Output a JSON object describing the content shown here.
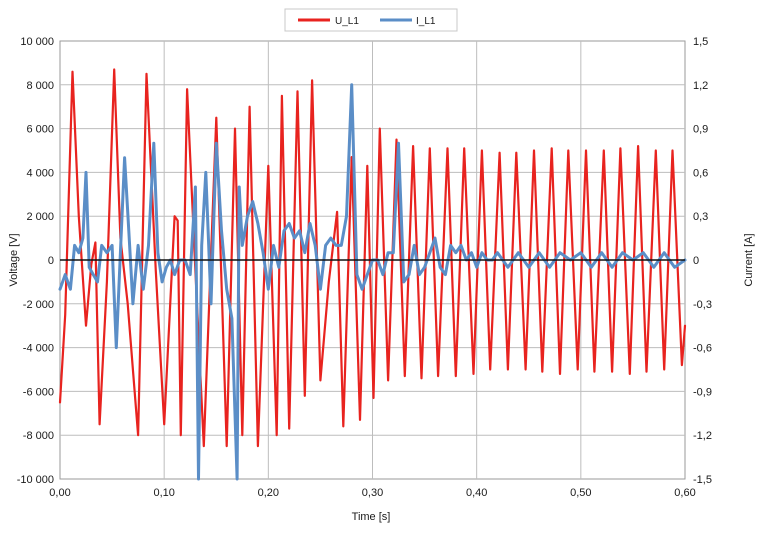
{
  "chart_data": {
    "type": "line",
    "title": "",
    "xlabel": "Time [s]",
    "ylabel": "Voltage [V]",
    "y2label": "Current [A]",
    "xlim": [
      0,
      0.6
    ],
    "ylim": [
      -10000,
      10000
    ],
    "y2lim": [
      -1.5,
      1.5
    ],
    "grid": true,
    "legend_position": "top-center",
    "x_ticks": [
      "0,00",
      "0,10",
      "0,20",
      "0,30",
      "0,40",
      "0,50",
      "0,60"
    ],
    "y_ticks": [
      "10 000",
      "8 000",
      "6 000",
      "4 000",
      "2 000",
      "0",
      "-2 000",
      "-4 000",
      "-6 000",
      "-8 000",
      "-10 000"
    ],
    "y2_ticks": [
      "1,5",
      "1,2",
      "0,9",
      "0,6",
      "0,3",
      "0",
      "-0,3",
      "-0,6",
      "-0,9",
      "-1,2",
      "-1,5"
    ],
    "series": [
      {
        "name": "U_L1",
        "axis": "left",
        "color": "#e8231f",
        "x": [
          0.0,
          0.005,
          0.012,
          0.018,
          0.025,
          0.03,
          0.034,
          0.038,
          0.045,
          0.052,
          0.058,
          0.065,
          0.075,
          0.083,
          0.092,
          0.1,
          0.11,
          0.113,
          0.116,
          0.122,
          0.13,
          0.138,
          0.144,
          0.15,
          0.16,
          0.168,
          0.175,
          0.182,
          0.19,
          0.2,
          0.208,
          0.213,
          0.22,
          0.228,
          0.235,
          0.242,
          0.25,
          0.258,
          0.266,
          0.272,
          0.28,
          0.288,
          0.295,
          0.301,
          0.307,
          0.315,
          0.323,
          0.331,
          0.339,
          0.347,
          0.355,
          0.363,
          0.372,
          0.38,
          0.388,
          0.397,
          0.405,
          0.413,
          0.422,
          0.43,
          0.438,
          0.447,
          0.455,
          0.463,
          0.472,
          0.48,
          0.488,
          0.497,
          0.505,
          0.513,
          0.522,
          0.53,
          0.538,
          0.547,
          0.555,
          0.563,
          0.572,
          0.58,
          0.588,
          0.597,
          0.6
        ],
        "values": [
          -6500,
          -2500,
          8600,
          2000,
          -3000,
          -200,
          800,
          -7500,
          -1000,
          8700,
          1000,
          -2000,
          -8000,
          8500,
          -500,
          -7500,
          2000,
          1800,
          -8000,
          7800,
          -500,
          -8500,
          -1000,
          6500,
          -8500,
          6000,
          -8000,
          7000,
          -8500,
          4300,
          -8000,
          7500,
          -7700,
          7700,
          -6200,
          8200,
          -5500,
          -1000,
          2200,
          -7600,
          4700,
          -7300,
          4300,
          -6300,
          6000,
          -5500,
          5500,
          -5300,
          5200,
          -5400,
          5100,
          -5300,
          5100,
          -5300,
          5100,
          -5200,
          5000,
          -5000,
          4900,
          -5000,
          4900,
          -5000,
          5000,
          -5100,
          5100,
          -5200,
          5000,
          -5000,
          5000,
          -5100,
          5000,
          -5100,
          5100,
          -5200,
          5200,
          -5100,
          5000,
          -5000,
          5000,
          -4800,
          -3000
        ]
      },
      {
        "name": "I_L1",
        "axis": "right",
        "color": "#5b8ec7",
        "x": [
          0.0,
          0.005,
          0.01,
          0.014,
          0.018,
          0.022,
          0.025,
          0.028,
          0.032,
          0.036,
          0.04,
          0.045,
          0.05,
          0.054,
          0.058,
          0.062,
          0.066,
          0.07,
          0.075,
          0.08,
          0.085,
          0.09,
          0.094,
          0.098,
          0.102,
          0.106,
          0.11,
          0.115,
          0.12,
          0.125,
          0.13,
          0.133,
          0.136,
          0.14,
          0.145,
          0.15,
          0.155,
          0.16,
          0.165,
          0.17,
          0.172,
          0.175,
          0.18,
          0.185,
          0.19,
          0.195,
          0.2,
          0.205,
          0.21,
          0.215,
          0.22,
          0.225,
          0.23,
          0.235,
          0.24,
          0.245,
          0.25,
          0.255,
          0.26,
          0.265,
          0.27,
          0.275,
          0.28,
          0.285,
          0.29,
          0.295,
          0.3,
          0.305,
          0.31,
          0.315,
          0.32,
          0.325,
          0.33,
          0.335,
          0.34,
          0.345,
          0.35,
          0.355,
          0.36,
          0.365,
          0.37,
          0.375,
          0.38,
          0.385,
          0.39,
          0.395,
          0.4,
          0.405,
          0.41,
          0.415,
          0.42,
          0.43,
          0.44,
          0.45,
          0.46,
          0.47,
          0.48,
          0.49,
          0.5,
          0.51,
          0.52,
          0.53,
          0.54,
          0.55,
          0.56,
          0.57,
          0.58,
          0.59,
          0.6
        ],
        "values": [
          -0.2,
          -0.1,
          -0.2,
          0.1,
          0.05,
          0.15,
          0.6,
          -0.05,
          -0.1,
          -0.15,
          0.1,
          0.05,
          0.1,
          -0.6,
          0.05,
          0.7,
          0.2,
          -0.3,
          0.1,
          -0.2,
          0.1,
          0.8,
          0.05,
          -0.15,
          -0.05,
          0.0,
          -0.1,
          0.0,
          0.0,
          -0.1,
          0.5,
          -1.5,
          0.1,
          0.6,
          -0.3,
          0.8,
          0.2,
          -0.2,
          -0.4,
          -1.5,
          0.5,
          0.1,
          0.3,
          0.4,
          0.25,
          0.05,
          -0.2,
          0.1,
          -0.05,
          0.2,
          0.25,
          0.15,
          0.2,
          0.05,
          0.25,
          0.1,
          -0.2,
          0.1,
          0.15,
          0.1,
          0.1,
          0.3,
          1.2,
          -0.1,
          -0.2,
          -0.1,
          0.0,
          0.0,
          -0.1,
          0.05,
          0.05,
          0.8,
          -0.15,
          -0.1,
          0.1,
          -0.1,
          -0.05,
          0.05,
          0.15,
          -0.05,
          -0.1,
          0.1,
          0.05,
          0.1,
          0.0,
          0.05,
          -0.05,
          0.05,
          0.0,
          0.0,
          0.05,
          -0.05,
          0.05,
          -0.05,
          0.05,
          -0.05,
          0.05,
          0.0,
          0.05,
          -0.05,
          0.05,
          -0.05,
          0.05,
          0.0,
          0.05,
          -0.05,
          0.05,
          -0.05,
          0.0
        ]
      }
    ]
  }
}
